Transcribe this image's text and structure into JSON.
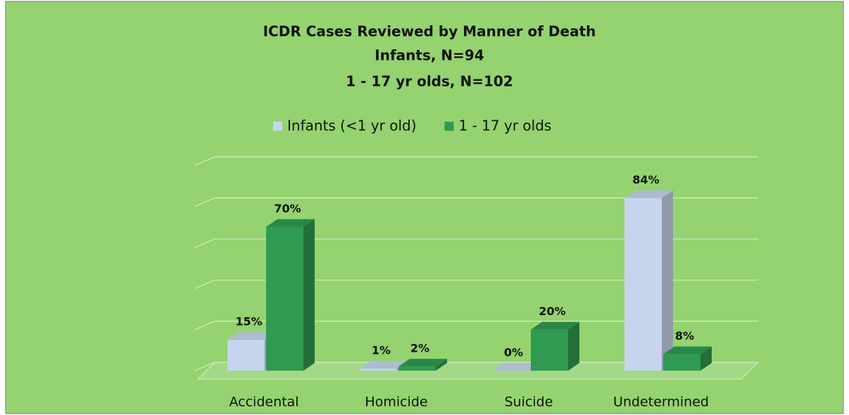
{
  "chart_data": {
    "type": "bar3d",
    "title": [
      "ICDR Cases Reviewed by Manner of Death",
      "Infants, N=94",
      "1 - 17 yr olds, N=102"
    ],
    "categories": [
      "Accidental",
      "Homicide",
      "Suicide",
      "Undetermined"
    ],
    "series": [
      {
        "name": "Infants (<1 yr old)",
        "color": "#c6d4ee",
        "values": [
          15,
          1,
          0,
          84
        ],
        "value_labels": [
          "15%",
          "1%",
          "0%",
          "84%"
        ]
      },
      {
        "name": "1 - 17 yr olds",
        "color": "#2f9a52",
        "values": [
          70,
          2,
          20,
          8
        ],
        "value_labels": [
          "70%",
          "2%",
          "20%",
          "8%"
        ]
      }
    ],
    "ylim": [
      0,
      100
    ],
    "yticks": [
      0,
      20,
      40,
      60,
      80,
      100
    ],
    "grid": true,
    "legend": "top"
  }
}
